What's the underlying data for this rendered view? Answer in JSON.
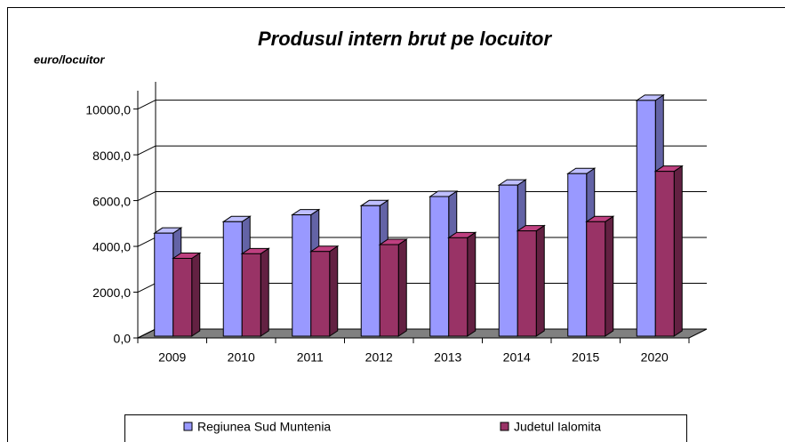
{
  "chart_data": {
    "type": "bar3d",
    "title": "Produsul intern brut pe locuitor",
    "y_label": "euro/locuitor",
    "categories": [
      "2009",
      "2010",
      "2011",
      "2012",
      "2013",
      "2014",
      "2015",
      "2020"
    ],
    "series": [
      {
        "name": "Regiunea Sud Muntenia",
        "color": "#9999ff",
        "values": [
          4500,
          5000,
          5300,
          5700,
          6100,
          6600,
          7100,
          10300
        ]
      },
      {
        "name": "Judetul Ialomita",
        "color": "#993366",
        "values": [
          3400,
          3600,
          3700,
          4000,
          4300,
          4600,
          5000,
          7200
        ]
      }
    ],
    "ylim": [
      0,
      10800
    ],
    "yticks": [
      {
        "value": 0,
        "label": "0,0"
      },
      {
        "value": 2000,
        "label": "2000,0"
      },
      {
        "value": 4000,
        "label": "4000,0"
      },
      {
        "value": 6000,
        "label": "6000,0"
      },
      {
        "value": 8000,
        "label": "8000,0"
      },
      {
        "value": 10000,
        "label": "10000,0"
      }
    ],
    "grid": true,
    "legend": "bottom"
  }
}
